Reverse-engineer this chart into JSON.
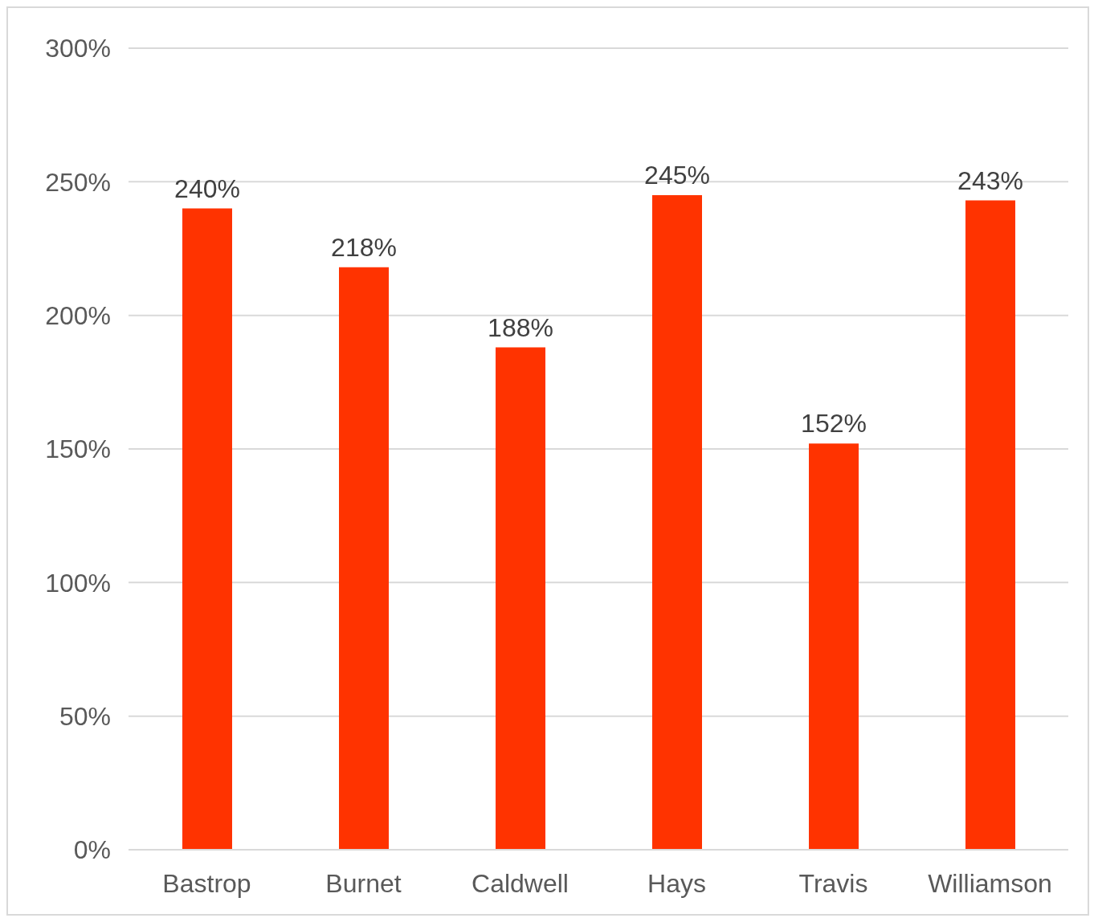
{
  "chart_data": {
    "type": "bar",
    "categories": [
      "Bastrop",
      "Burnet",
      "Caldwell",
      "Hays",
      "Travis",
      "Williamson"
    ],
    "values": [
      240,
      218,
      188,
      245,
      152,
      243
    ],
    "value_labels": [
      "240%",
      "218%",
      "188%",
      "245%",
      "152%",
      "243%"
    ],
    "color": "#ff3300",
    "ylim": [
      0,
      300
    ],
    "yticks": [
      {
        "value": 0,
        "label": "0%"
      },
      {
        "value": 50,
        "label": "50%"
      },
      {
        "value": 100,
        "label": "100%"
      },
      {
        "value": 150,
        "label": "150%"
      },
      {
        "value": 200,
        "label": "200%"
      },
      {
        "value": 250,
        "label": "250%"
      },
      {
        "value": 300,
        "label": "300%"
      }
    ],
    "grid": "y",
    "legend": false
  }
}
